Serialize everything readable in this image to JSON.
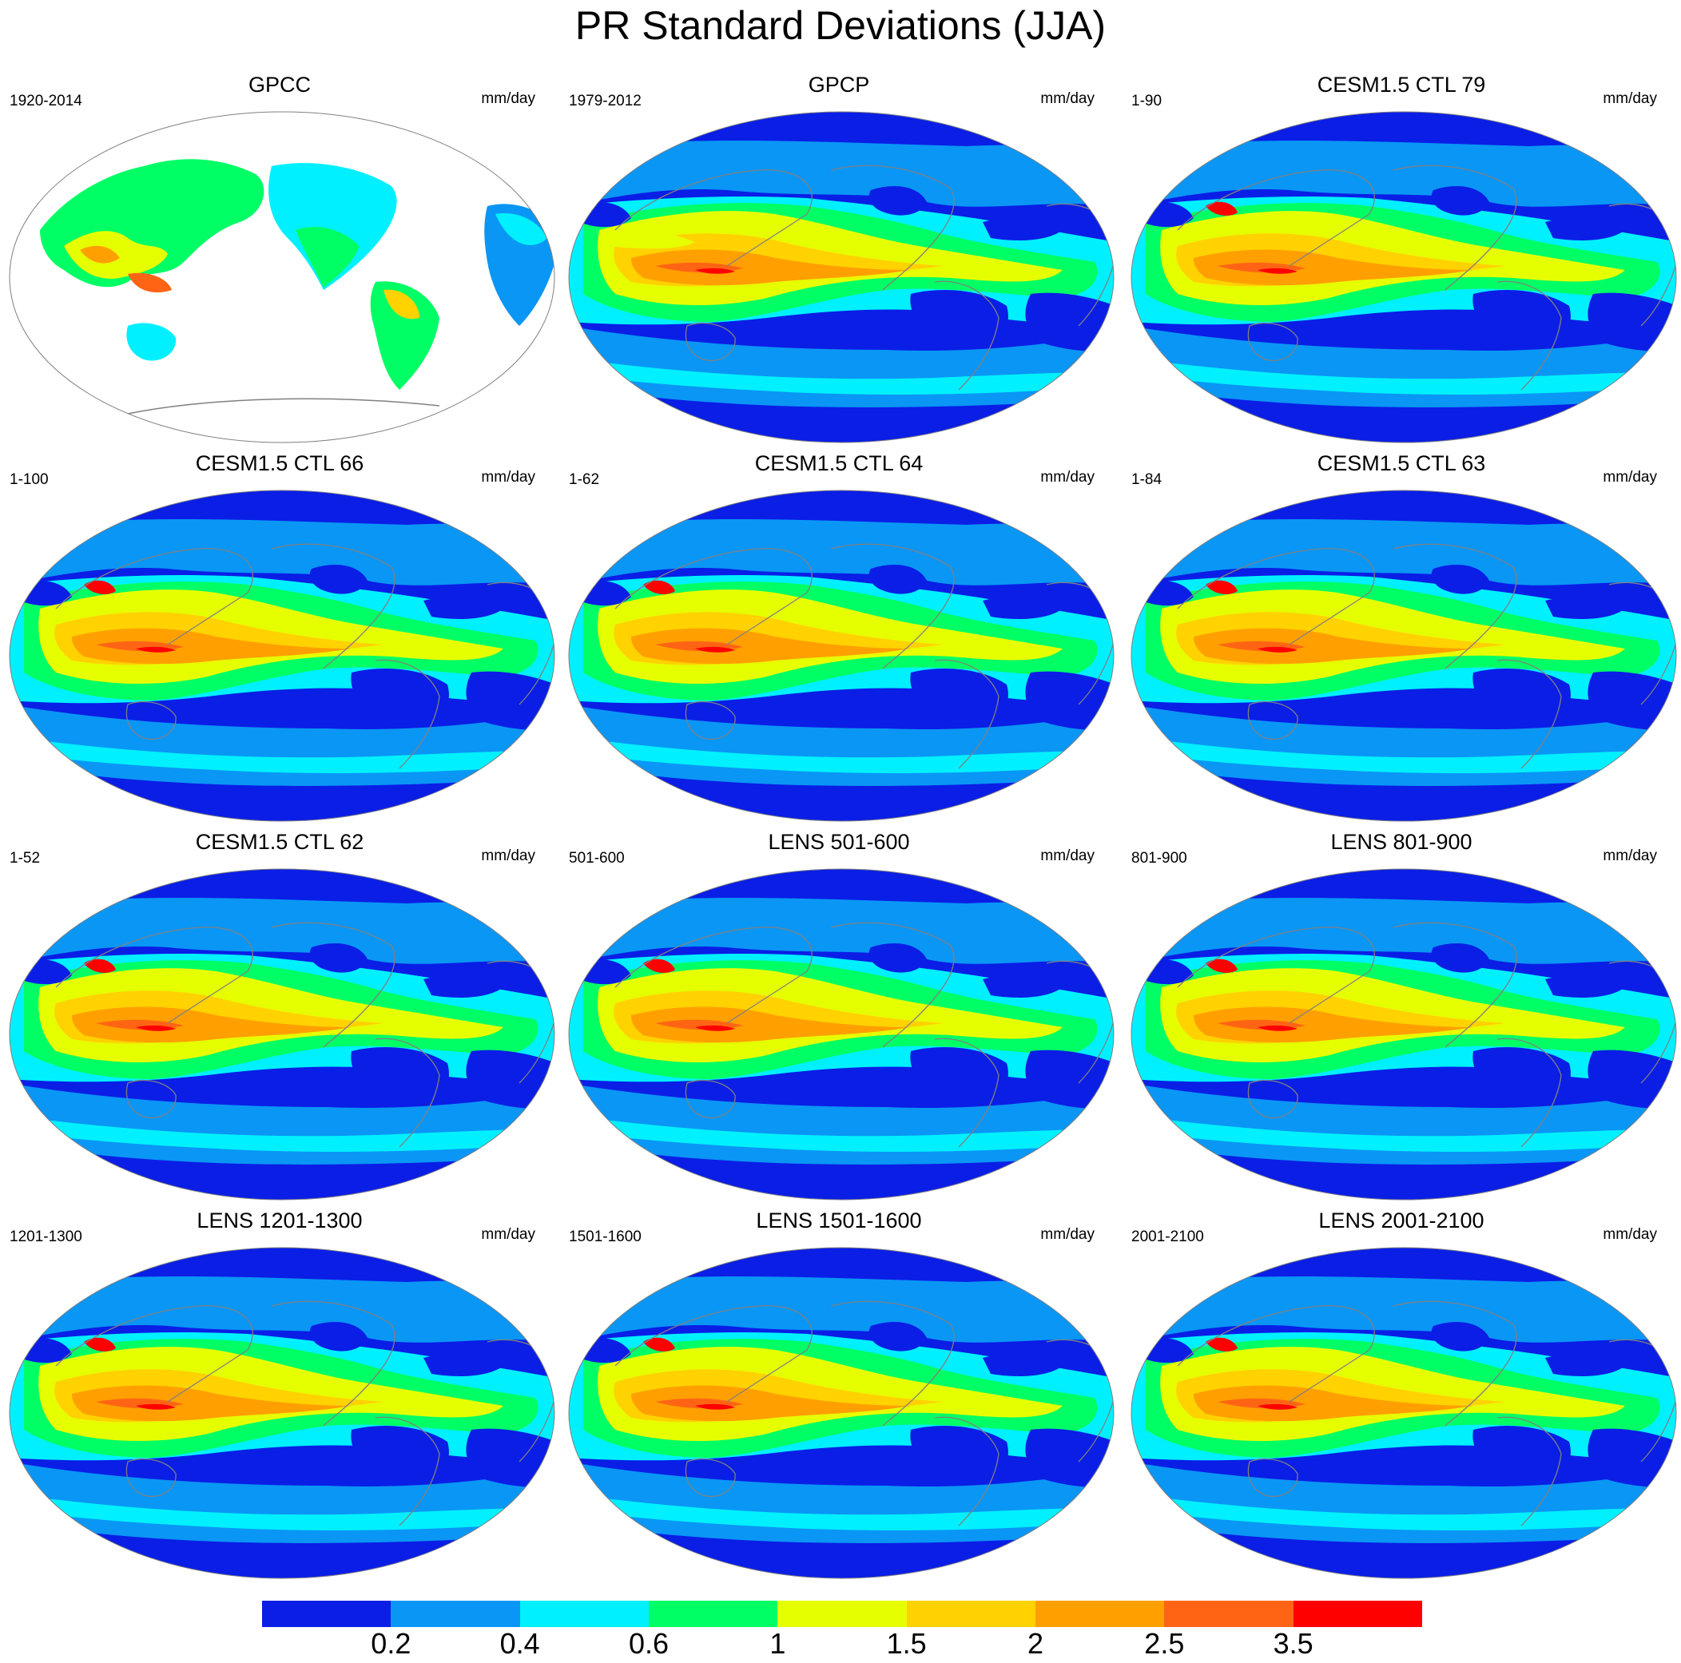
{
  "title": "PR Standard Deviations (JJA)",
  "colors": {
    "levels": [
      "#0a1ee6",
      "#0a96f5",
      "#00f0ff",
      "#00ff64",
      "#e6ff00",
      "#ffd200",
      "#ffa000",
      "#ff6414",
      "#ff0000"
    ],
    "land_outline": "#808080",
    "ocean_white": "#ffffff"
  },
  "colorbar": {
    "labels": [
      "0.2",
      "0.4",
      "0.6",
      "1",
      "1.5",
      "2",
      "2.5",
      "3.5"
    ]
  },
  "panels": [
    {
      "title": "GPCC",
      "left": "1920-2014",
      "right": "mm/day",
      "mode": "land"
    },
    {
      "title": "GPCP",
      "left": "1979-2012",
      "right": "mm/day",
      "mode": "obs"
    },
    {
      "title": "CESM1.5 CTL 79",
      "left": "1-90",
      "right": "mm/day",
      "mode": "model"
    },
    {
      "title": "CESM1.5 CTL 66",
      "left": "1-100",
      "right": "mm/day",
      "mode": "model"
    },
    {
      "title": "CESM1.5 CTL 64",
      "left": "1-62",
      "right": "mm/day",
      "mode": "model"
    },
    {
      "title": "CESM1.5 CTL 63",
      "left": "1-84",
      "right": "mm/day",
      "mode": "model"
    },
    {
      "title": "CESM1.5 CTL 62",
      "left": "1-52",
      "right": "mm/day",
      "mode": "model"
    },
    {
      "title": "LENS 501-600",
      "left": "501-600",
      "right": "mm/day",
      "mode": "model"
    },
    {
      "title": "LENS 801-900",
      "left": "801-900",
      "right": "mm/day",
      "mode": "model"
    },
    {
      "title": "LENS 1201-1300",
      "left": "1201-1300",
      "right": "mm/day",
      "mode": "model"
    },
    {
      "title": "LENS 1501-1600",
      "left": "1501-1600",
      "right": "mm/day",
      "mode": "model"
    },
    {
      "title": "LENS 2001-2100",
      "left": "2001-2100",
      "right": "mm/day",
      "mode": "model"
    }
  ]
}
